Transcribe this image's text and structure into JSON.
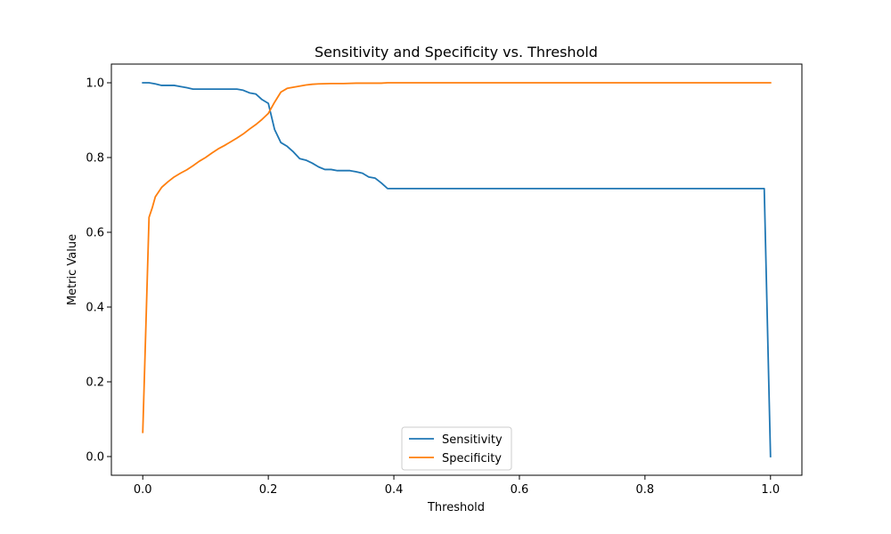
{
  "chart_data": {
    "type": "line",
    "title": "Sensitivity and Specificity vs. Threshold",
    "xlabel": "Threshold",
    "ylabel": "Metric Value",
    "xlim": [
      -0.05,
      1.05
    ],
    "ylim": [
      -0.05,
      1.05
    ],
    "xticks": [
      0.0,
      0.2,
      0.4,
      0.6,
      0.8,
      1.0
    ],
    "xtick_labels": [
      "0.0",
      "0.2",
      "0.4",
      "0.6",
      "0.8",
      "1.0"
    ],
    "yticks": [
      0.0,
      0.2,
      0.4,
      0.6,
      0.8,
      1.0
    ],
    "ytick_labels": [
      "0.0",
      "0.2",
      "0.4",
      "0.6",
      "0.8",
      "1.0"
    ],
    "grid": false,
    "legend_position": "bottom-center",
    "series": [
      {
        "name": "Sensitivity",
        "color": "#1f77b4",
        "x": [
          0.0,
          0.01,
          0.02,
          0.03,
          0.04,
          0.05,
          0.06,
          0.07,
          0.08,
          0.09,
          0.1,
          0.11,
          0.12,
          0.13,
          0.14,
          0.15,
          0.16,
          0.17,
          0.18,
          0.19,
          0.2,
          0.21,
          0.22,
          0.23,
          0.24,
          0.25,
          0.26,
          0.27,
          0.28,
          0.29,
          0.3,
          0.31,
          0.32,
          0.33,
          0.34,
          0.35,
          0.36,
          0.37,
          0.38,
          0.39,
          0.4,
          0.5,
          0.6,
          0.7,
          0.8,
          0.9,
          0.99,
          1.0
        ],
        "values": [
          1.0,
          1.0,
          0.997,
          0.993,
          0.993,
          0.993,
          0.99,
          0.987,
          0.983,
          0.983,
          0.983,
          0.983,
          0.983,
          0.983,
          0.983,
          0.983,
          0.98,
          0.973,
          0.97,
          0.955,
          0.945,
          0.875,
          0.84,
          0.83,
          0.815,
          0.797,
          0.793,
          0.785,
          0.775,
          0.768,
          0.768,
          0.765,
          0.765,
          0.765,
          0.762,
          0.758,
          0.748,
          0.745,
          0.732,
          0.717,
          0.717,
          0.717,
          0.717,
          0.717,
          0.717,
          0.717,
          0.717,
          0.0
        ]
      },
      {
        "name": "Specificity",
        "color": "#ff7f0e",
        "x": [
          0.0,
          0.005,
          0.01,
          0.015,
          0.02,
          0.03,
          0.04,
          0.05,
          0.06,
          0.07,
          0.08,
          0.09,
          0.1,
          0.11,
          0.12,
          0.13,
          0.14,
          0.15,
          0.16,
          0.17,
          0.18,
          0.19,
          0.2,
          0.21,
          0.22,
          0.23,
          0.24,
          0.25,
          0.26,
          0.27,
          0.28,
          0.3,
          0.32,
          0.34,
          0.36,
          0.38,
          0.39,
          0.4,
          0.5,
          0.6,
          0.7,
          0.8,
          0.9,
          1.0
        ],
        "values": [
          0.065,
          0.35,
          0.64,
          0.665,
          0.695,
          0.72,
          0.735,
          0.748,
          0.758,
          0.767,
          0.778,
          0.79,
          0.8,
          0.812,
          0.823,
          0.832,
          0.842,
          0.852,
          0.863,
          0.876,
          0.888,
          0.902,
          0.918,
          0.948,
          0.975,
          0.985,
          0.988,
          0.991,
          0.994,
          0.996,
          0.997,
          0.998,
          0.998,
          0.999,
          0.999,
          0.999,
          1.0,
          1.0,
          1.0,
          1.0,
          1.0,
          1.0,
          1.0,
          1.0
        ]
      }
    ]
  }
}
